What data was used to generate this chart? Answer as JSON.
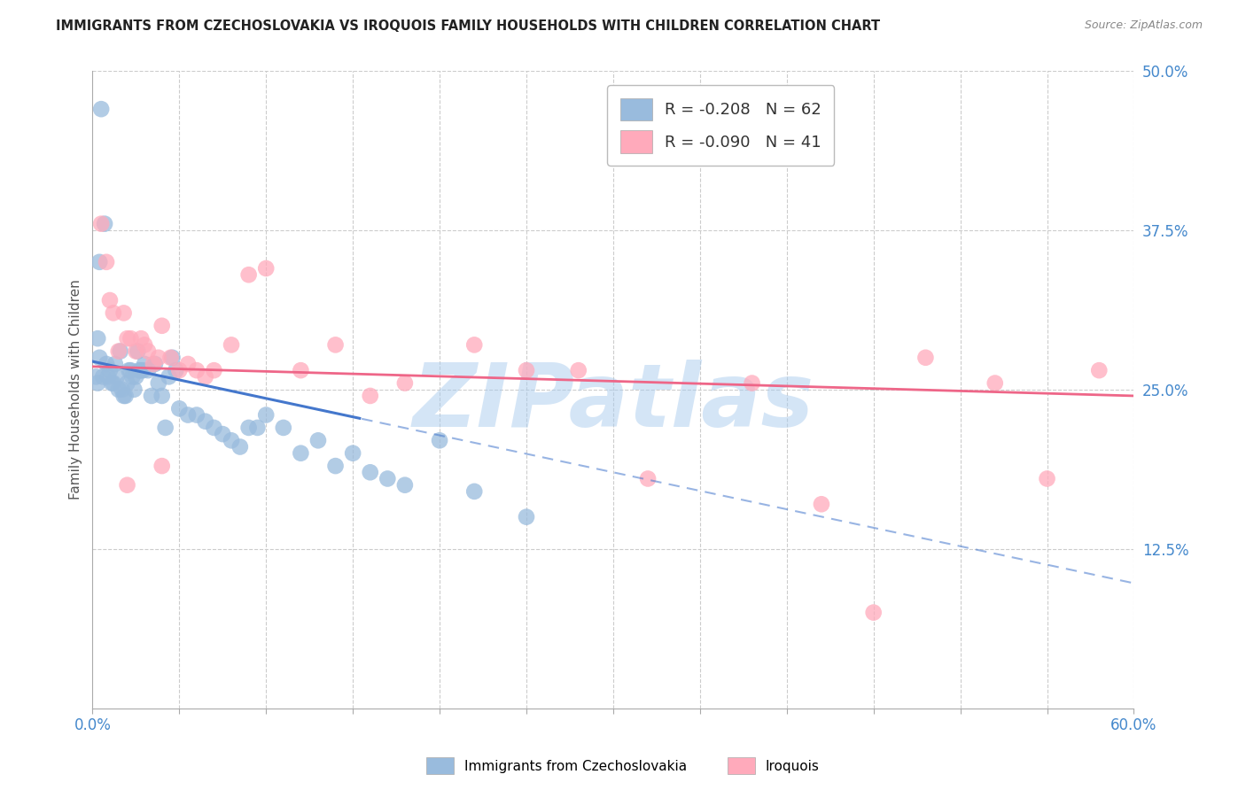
{
  "title": "IMMIGRANTS FROM CZECHOSLOVAKIA VS IROQUOIS FAMILY HOUSEHOLDS WITH CHILDREN CORRELATION CHART",
  "source": "Source: ZipAtlas.com",
  "ylabel": "Family Households with Children",
  "right_ytick_labels": [
    "50.0%",
    "37.5%",
    "25.0%",
    "12.5%"
  ],
  "right_ytick_values": [
    0.5,
    0.375,
    0.25,
    0.125
  ],
  "xlim": [
    0.0,
    0.6
  ],
  "ylim": [
    0.0,
    0.5
  ],
  "xtick_values": [
    0.0,
    0.05,
    0.1,
    0.15,
    0.2,
    0.25,
    0.3,
    0.35,
    0.4,
    0.45,
    0.5,
    0.55,
    0.6
  ],
  "xtick_labels_show": {
    "0.0": "0.0%",
    "0.6": "60.0%"
  },
  "legend_x_label": "Immigrants from Czechoslovakia",
  "legend_pink_label": "Iroquois",
  "blue_color": "#99BBDD",
  "pink_color": "#FFAABB",
  "blue_line_color": "#4477CC",
  "pink_line_color": "#EE6688",
  "background_color": "#FFFFFF",
  "grid_color": "#CCCCCC",
  "watermark_text": "ZIPatlas",
  "watermark_color": "#AACCEE",
  "blue_line_start_x": 0.0,
  "blue_line_solid_end_x": 0.155,
  "blue_line_end_x": 0.6,
  "blue_line_start_y": 0.272,
  "blue_line_end_y": 0.098,
  "pink_line_start_x": 0.0,
  "pink_line_end_x": 0.6,
  "pink_line_start_y": 0.268,
  "pink_line_end_y": 0.245,
  "blue_x": [
    0.002,
    0.003,
    0.004,
    0.005,
    0.006,
    0.007,
    0.008,
    0.009,
    0.01,
    0.011,
    0.012,
    0.013,
    0.014,
    0.015,
    0.016,
    0.017,
    0.018,
    0.019,
    0.02,
    0.021,
    0.022,
    0.023,
    0.024,
    0.025,
    0.026,
    0.027,
    0.028,
    0.029,
    0.03,
    0.032,
    0.034,
    0.036,
    0.038,
    0.04,
    0.042,
    0.044,
    0.046,
    0.048,
    0.05,
    0.055,
    0.06,
    0.065,
    0.07,
    0.075,
    0.08,
    0.085,
    0.09,
    0.095,
    0.1,
    0.11,
    0.12,
    0.13,
    0.14,
    0.15,
    0.16,
    0.17,
    0.18,
    0.2,
    0.22,
    0.25,
    0.003,
    0.004
  ],
  "blue_y": [
    0.26,
    0.255,
    0.275,
    0.47,
    0.26,
    0.38,
    0.27,
    0.26,
    0.265,
    0.255,
    0.255,
    0.27,
    0.26,
    0.25,
    0.28,
    0.25,
    0.245,
    0.245,
    0.255,
    0.265,
    0.265,
    0.26,
    0.25,
    0.26,
    0.28,
    0.265,
    0.265,
    0.265,
    0.27,
    0.265,
    0.245,
    0.27,
    0.255,
    0.245,
    0.22,
    0.26,
    0.275,
    0.265,
    0.235,
    0.23,
    0.23,
    0.225,
    0.22,
    0.215,
    0.21,
    0.205,
    0.22,
    0.22,
    0.23,
    0.22,
    0.2,
    0.21,
    0.19,
    0.2,
    0.185,
    0.18,
    0.175,
    0.21,
    0.17,
    0.15,
    0.29,
    0.35
  ],
  "pink_x": [
    0.005,
    0.008,
    0.01,
    0.012,
    0.015,
    0.018,
    0.02,
    0.022,
    0.025,
    0.028,
    0.03,
    0.032,
    0.035,
    0.038,
    0.04,
    0.045,
    0.05,
    0.055,
    0.06,
    0.065,
    0.07,
    0.08,
    0.09,
    0.1,
    0.12,
    0.14,
    0.16,
    0.18,
    0.22,
    0.25,
    0.28,
    0.32,
    0.38,
    0.42,
    0.48,
    0.52,
    0.55,
    0.58,
    0.02,
    0.04,
    0.45
  ],
  "pink_y": [
    0.38,
    0.35,
    0.32,
    0.31,
    0.28,
    0.31,
    0.29,
    0.29,
    0.28,
    0.29,
    0.285,
    0.28,
    0.27,
    0.275,
    0.3,
    0.275,
    0.265,
    0.27,
    0.265,
    0.26,
    0.265,
    0.285,
    0.34,
    0.345,
    0.265,
    0.285,
    0.245,
    0.255,
    0.285,
    0.265,
    0.265,
    0.18,
    0.255,
    0.16,
    0.275,
    0.255,
    0.18,
    0.265,
    0.175,
    0.19,
    0.075
  ]
}
